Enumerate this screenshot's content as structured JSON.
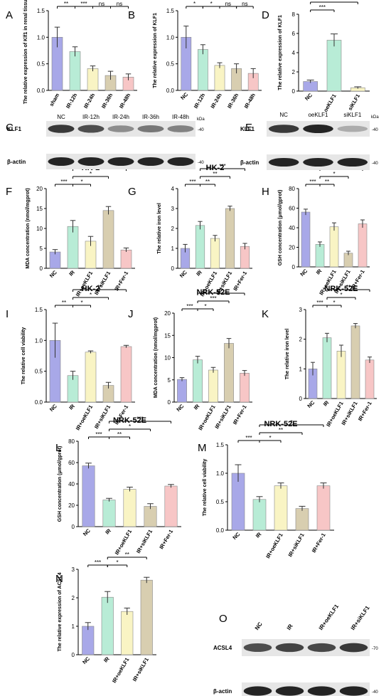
{
  "panel_letters": [
    "A",
    "B",
    "C",
    "D",
    "E",
    "F",
    "G",
    "H",
    "I",
    "J",
    "K",
    "L",
    "M",
    "N",
    "O"
  ],
  "colors": {
    "nc": "#a8a8e8",
    "ir": "#b8ecd6",
    "oe": "#f9f4c4",
    "si": "#d8ceb0",
    "fer": "#f7c6c6",
    "sham": "#a8a8e8"
  },
  "chart_data": [
    {
      "panel": "A",
      "type": "bar",
      "title": "",
      "ylabel": "The relative expression of Klf1 in renal tissue",
      "categories": [
        "sham",
        "IR-12h",
        "IR-24h",
        "IR-36h",
        "IR-48h"
      ],
      "values": [
        1.0,
        0.73,
        0.41,
        0.28,
        0.25
      ],
      "errors": [
        0.19,
        0.09,
        0.05,
        0.08,
        0.06
      ],
      "ylim": [
        0,
        1.5
      ],
      "yticks": [
        "0.0",
        "0.5",
        "1.0",
        "1.5"
      ],
      "colors": [
        "#a8a8e8",
        "#b8ecd6",
        "#f9f4c4",
        "#d8ceb0",
        "#f7c6c6"
      ],
      "sig": [
        {
          "from": 0,
          "to": 1,
          "label": "**",
          "level": 0
        },
        {
          "from": 1,
          "to": 2,
          "label": "***",
          "level": 0
        },
        {
          "from": 2,
          "to": 3,
          "label": "ns",
          "level": 0
        },
        {
          "from": 3,
          "to": 4,
          "label": "ns",
          "level": 0
        }
      ]
    },
    {
      "panel": "B",
      "type": "bar",
      "title": "",
      "ylabel": "The relative expression of KLF1",
      "categories": [
        "NC",
        "IR-12h",
        "IR-24h",
        "IR-36h",
        "IR-48h"
      ],
      "values": [
        1.0,
        0.77,
        0.47,
        0.41,
        0.32
      ],
      "errors": [
        0.21,
        0.09,
        0.05,
        0.09,
        0.09
      ],
      "ylim": [
        0,
        1.5
      ],
      "yticks": [
        "0.0",
        "0.5",
        "1.0",
        "1.5"
      ],
      "colors": [
        "#a8a8e8",
        "#b8ecd6",
        "#f9f4c4",
        "#d8ceb0",
        "#f7c6c6"
      ],
      "sig": [
        {
          "from": 0,
          "to": 1,
          "label": "*",
          "level": 0
        },
        {
          "from": 1,
          "to": 2,
          "label": "*",
          "level": 0
        },
        {
          "from": 2,
          "to": 3,
          "label": "ns",
          "level": 0
        },
        {
          "from": 3,
          "to": 4,
          "label": "ns",
          "level": 0
        }
      ]
    },
    {
      "panel": "D",
      "type": "bar",
      "title": "",
      "ylabel": "The relative expression of KLF1",
      "categories": [
        "NC",
        "oeKLF1",
        "siKLF1"
      ],
      "values": [
        1.0,
        5.3,
        0.35
      ],
      "errors": [
        0.15,
        0.65,
        0.1
      ],
      "ylim": [
        0,
        8
      ],
      "yticks": [
        "0",
        "2",
        "4",
        "6",
        "8"
      ],
      "colors": [
        "#a8a8e8",
        "#b8ecd6",
        "#f9f4c4"
      ],
      "sig": [
        {
          "from": 0,
          "to": 1,
          "label": "***",
          "level": 0
        },
        {
          "from": 0,
          "to": 2,
          "label": "**",
          "level": 1
        }
      ]
    },
    {
      "panel": "F",
      "type": "bar",
      "title": "HK-2",
      "ylabel": "MDA concentration (nmol/mgprot)",
      "categories": [
        "NC",
        "IR",
        "IR+oeKLF1",
        "IR+siKLF1",
        "IR+Fer-1"
      ],
      "values": [
        4.1,
        10.5,
        6.8,
        14.5,
        4.6
      ],
      "errors": [
        0.6,
        1.5,
        1.2,
        1.0,
        0.5
      ],
      "ylim": [
        0,
        20
      ],
      "yticks": [
        "0",
        "5",
        "10",
        "15",
        "20"
      ],
      "colors": [
        "#a8a8e8",
        "#b8ecd6",
        "#f9f4c4",
        "#d8ceb0",
        "#f7c6c6"
      ],
      "sig": [
        {
          "from": 0,
          "to": 1,
          "label": "***",
          "level": 0
        },
        {
          "from": 1,
          "to": 2,
          "label": "*",
          "level": 0
        },
        {
          "from": 1,
          "to": 3,
          "label": "*",
          "level": 1
        },
        {
          "from": 1,
          "to": 4,
          "label": "***",
          "level": 2
        }
      ]
    },
    {
      "panel": "G",
      "type": "bar",
      "title": "HK-2",
      "ylabel": "The relative iron level",
      "categories": [
        "NC",
        "IR",
        "IR+oeKLF1",
        "IR+siKLF1",
        "IR+Fer-1"
      ],
      "values": [
        1.0,
        2.15,
        1.5,
        3.0,
        1.1
      ],
      "errors": [
        0.2,
        0.2,
        0.15,
        0.12,
        0.15
      ],
      "ylim": [
        0,
        4
      ],
      "yticks": [
        "0",
        "1",
        "2",
        "3",
        "4"
      ],
      "colors": [
        "#a8a8e8",
        "#b8ecd6",
        "#f9f4c4",
        "#d8ceb0",
        "#f7c6c6"
      ],
      "sig": [
        {
          "from": 0,
          "to": 1,
          "label": "***",
          "level": 0
        },
        {
          "from": 1,
          "to": 2,
          "label": "**",
          "level": 0
        },
        {
          "from": 1,
          "to": 3,
          "label": "**",
          "level": 1
        },
        {
          "from": 1,
          "to": 4,
          "label": "***",
          "level": 2
        }
      ]
    },
    {
      "panel": "H",
      "type": "bar",
      "title": "HK-2",
      "ylabel": "GSH concentration (μmol/gprot)",
      "categories": [
        "NC",
        "IR",
        "IR+oeKLF1",
        "IR+siKLF1",
        "IR+Fer-1"
      ],
      "values": [
        56,
        23,
        41,
        14,
        44
      ],
      "errors": [
        3,
        2.5,
        4,
        2,
        4
      ],
      "ylim": [
        0,
        80
      ],
      "yticks": [
        "0",
        "20",
        "40",
        "60",
        "80"
      ],
      "colors": [
        "#a8a8e8",
        "#b8ecd6",
        "#f9f4c4",
        "#d8ceb0",
        "#f7c6c6"
      ],
      "sig": [
        {
          "from": 0,
          "to": 1,
          "label": "***",
          "level": 0
        },
        {
          "from": 1,
          "to": 2,
          "label": "**",
          "level": 0
        },
        {
          "from": 1,
          "to": 3,
          "label": "*",
          "level": 1
        },
        {
          "from": 1,
          "to": 4,
          "label": "***",
          "level": 2
        }
      ]
    },
    {
      "panel": "I",
      "type": "bar",
      "title": "HK-2",
      "ylabel": "The relative cell viability",
      "categories": [
        "NC",
        "IR",
        "IR+oeKLF1",
        "IR+siKLF1",
        "IR+Fer-1"
      ],
      "values": [
        1.0,
        0.43,
        0.81,
        0.27,
        0.9
      ],
      "errors": [
        0.28,
        0.07,
        0.02,
        0.05,
        0.02
      ],
      "ylim": [
        0,
        1.5
      ],
      "yticks": [
        "0.0",
        "0.5",
        "1.0",
        "1.5"
      ],
      "colors": [
        "#a8a8e8",
        "#b8ecd6",
        "#f9f4c4",
        "#d8ceb0",
        "#f7c6c6"
      ],
      "sig": [
        {
          "from": 0,
          "to": 1,
          "label": "**",
          "level": 0
        },
        {
          "from": 1,
          "to": 2,
          "label": "*",
          "level": 0
        },
        {
          "from": 1,
          "to": 3,
          "label": "*",
          "level": 1
        },
        {
          "from": 1,
          "to": 4,
          "label": "**",
          "level": 2
        }
      ]
    },
    {
      "panel": "J",
      "type": "bar",
      "title": "NRK-52E",
      "ylabel": "MDA concentration (nmol/mgprot)",
      "categories": [
        "NC",
        "IR",
        "IR+oeKLF1",
        "IR+siKLF1",
        "IR+Fer-1"
      ],
      "values": [
        5.1,
        9.5,
        7.2,
        13.2,
        6.5
      ],
      "errors": [
        0.4,
        0.8,
        0.6,
        1.1,
        0.6
      ],
      "ylim": [
        0,
        20
      ],
      "yticks": [
        "0",
        "5",
        "10",
        "15",
        "20"
      ],
      "colors": [
        "#a8a8e8",
        "#b8ecd6",
        "#f9f4c4",
        "#d8ceb0",
        "#f7c6c6"
      ],
      "sig": [
        {
          "from": 0,
          "to": 1,
          "label": "***",
          "level": 0
        },
        {
          "from": 1,
          "to": 2,
          "label": "*",
          "level": 0
        },
        {
          "from": 1,
          "to": 3,
          "label": "***",
          "level": 1
        },
        {
          "from": 1,
          "to": 4,
          "label": "**",
          "level": 2
        }
      ]
    },
    {
      "panel": "K",
      "type": "bar",
      "title": "NRK-52E",
      "ylabel": "The relative iron level",
      "categories": [
        "NC",
        "IR",
        "IR+oeKLF1",
        "IR+siKLF1",
        "IR+Fer-1"
      ],
      "values": [
        1.0,
        2.05,
        1.6,
        2.45,
        1.3
      ],
      "errors": [
        0.22,
        0.15,
        0.2,
        0.08,
        0.1
      ],
      "ylim": [
        0,
        3
      ],
      "yticks": [
        "0",
        "1",
        "2",
        "3"
      ],
      "colors": [
        "#a8a8e8",
        "#b8ecd6",
        "#f9f4c4",
        "#d8ceb0",
        "#f7c6c6"
      ],
      "sig": [
        {
          "from": 0,
          "to": 1,
          "label": "***",
          "level": 0
        },
        {
          "from": 1,
          "to": 2,
          "label": "*",
          "level": 0
        },
        {
          "from": 1,
          "to": 3,
          "label": "*",
          "level": 1
        },
        {
          "from": 1,
          "to": 4,
          "label": "**",
          "level": 2
        }
      ]
    },
    {
      "panel": "L",
      "type": "bar",
      "title": "NRK-52E",
      "ylabel": "GSH concentration (μmol/gprot)",
      "categories": [
        "NC",
        "IR",
        "IR+oeKLF1",
        "IR+siKLF1",
        "IR+Fer-1"
      ],
      "values": [
        57,
        25,
        35,
        19,
        38
      ],
      "errors": [
        2.5,
        1.5,
        2,
        2.5,
        1.5
      ],
      "ylim": [
        0,
        80
      ],
      "yticks": [
        "0",
        "20",
        "40",
        "60",
        "80"
      ],
      "colors": [
        "#a8a8e8",
        "#b8ecd6",
        "#f9f4c4",
        "#d8ceb0",
        "#f7c6c6"
      ],
      "sig": [
        {
          "from": 0,
          "to": 1,
          "label": "***",
          "level": 0
        },
        {
          "from": 1,
          "to": 2,
          "label": "**",
          "level": 0
        },
        {
          "from": 1,
          "to": 3,
          "label": "*",
          "level": 1
        },
        {
          "from": 1,
          "to": 4,
          "label": "***",
          "level": 2
        }
      ]
    },
    {
      "panel": "M",
      "type": "bar",
      "title": "NRK-52E",
      "ylabel": "The relative cell viability",
      "categories": [
        "NC",
        "IR",
        "IR+oeKLF1",
        "IR+siKLF1",
        "IR+Fer-1"
      ],
      "values": [
        1.0,
        0.54,
        0.78,
        0.38,
        0.78
      ],
      "errors": [
        0.15,
        0.05,
        0.05,
        0.04,
        0.05
      ],
      "ylim": [
        0,
        1.5
      ],
      "yticks": [
        "0.0",
        "0.5",
        "1.0",
        "1.5"
      ],
      "colors": [
        "#a8a8e8",
        "#b8ecd6",
        "#f9f4c4",
        "#d8ceb0",
        "#f7c6c6"
      ],
      "sig": [
        {
          "from": 0,
          "to": 1,
          "label": "***",
          "level": 0
        },
        {
          "from": 1,
          "to": 2,
          "label": "*",
          "level": 0
        },
        {
          "from": 1,
          "to": 3,
          "label": "**",
          "level": 1
        },
        {
          "from": 1,
          "to": 4,
          "label": "*",
          "level": 2
        }
      ]
    },
    {
      "panel": "N",
      "type": "bar",
      "title": "",
      "ylabel": "The relative expression of ACSL4",
      "categories": [
        "NC",
        "IR",
        "IR+oeKLF1",
        "IR+siKLF1"
      ],
      "values": [
        1.0,
        2.02,
        1.52,
        2.62
      ],
      "errors": [
        0.13,
        0.2,
        0.12,
        0.1
      ],
      "ylim": [
        0,
        3
      ],
      "yticks": [
        "0",
        "1",
        "2",
        "3"
      ],
      "colors": [
        "#a8a8e8",
        "#b8ecd6",
        "#f9f4c4",
        "#d8ceb0"
      ],
      "sig": [
        {
          "from": 0,
          "to": 1,
          "label": "***",
          "level": 0
        },
        {
          "from": 1,
          "to": 2,
          "label": "*",
          "level": 0
        },
        {
          "from": 1,
          "to": 3,
          "label": "**",
          "level": 1
        }
      ]
    }
  ],
  "blots": [
    {
      "panel": "C",
      "columns": [
        "NC",
        "IR-12h",
        "IR-24h",
        "IR-36h",
        "IR-48h"
      ],
      "unit": "kDa",
      "rows": [
        {
          "label": "KLF1",
          "marker": "40",
          "intensities": [
            0.85,
            0.75,
            0.45,
            0.55,
            0.5
          ]
        },
        {
          "label": "β-actin",
          "marker": "40",
          "intensities": [
            0.95,
            0.95,
            0.95,
            0.95,
            0.95
          ]
        }
      ]
    },
    {
      "panel": "E",
      "columns": [
        "NC",
        "oeKLF1",
        "siKLF1"
      ],
      "unit": "kDa",
      "rows": [
        {
          "label": "KLF1",
          "marker": "40",
          "intensities": [
            0.85,
            0.95,
            0.3
          ]
        },
        {
          "label": "β-actin",
          "marker": "40",
          "intensities": [
            0.95,
            0.95,
            0.95
          ]
        }
      ]
    },
    {
      "panel": "O",
      "columns": [
        "NC",
        "IR",
        "IR+oeKLF1",
        "IR+siKLF1"
      ],
      "unit": "",
      "rows": [
        {
          "label": "ACSL4",
          "marker": "70",
          "intensities": [
            0.75,
            0.8,
            0.78,
            0.85
          ]
        },
        {
          "label": "β-actin",
          "marker": "40",
          "intensities": [
            0.95,
            0.95,
            0.95,
            0.95
          ]
        }
      ]
    }
  ]
}
